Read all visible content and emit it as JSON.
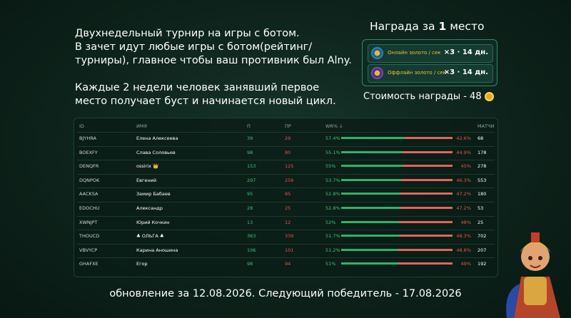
{
  "description": {
    "lines": [
      "Двухнедельный турнир на игры с ботом.",
      "В зачет идут любые игры с ботом(рейтинг/",
      "турниры), главное чтобы ваш противник был Alny.",
      "Каждые 2 недели человек занявший первое",
      "место получает буст и начинается новый цикл."
    ]
  },
  "reward": {
    "title_prefix": "Награда за",
    "place": "1",
    "title_suffix": "место",
    "items": [
      {
        "label": "Онлайн золото / сек",
        "bonus": "×3 · 14 дн."
      },
      {
        "label": "Оффлайн золото / сек",
        "bonus": "×3 · 14 дн."
      }
    ],
    "cost": "Стоимость награды - 48"
  },
  "table": {
    "headers": [
      "ID",
      "ИМЯ",
      "П",
      "ПР",
      "WR% ↓",
      "МАТЧИ"
    ],
    "rows": [
      {
        "id": "BJYHRA",
        "name": "Елена Алексеева",
        "wins": "39",
        "losses": "29",
        "win": {
          "value": 57.4,
          "label": "57.4%"
        },
        "loss": {
          "value": 42.6,
          "label": "42.6%"
        },
        "matches": "68"
      },
      {
        "id": "BOEXFY",
        "name": "Слава Соловьев",
        "wins": "98",
        "losses": "80",
        "win": {
          "value": 55.1,
          "label": "55.1%"
        },
        "loss": {
          "value": 44.9,
          "label": "44.9%"
        },
        "matches": "178"
      },
      {
        "id": "DENQFR",
        "name": "ossirix 👑",
        "wins": "153",
        "losses": "125",
        "win": {
          "value": 55,
          "label": "55%"
        },
        "loss": {
          "value": 45,
          "label": "45%"
        },
        "matches": "278"
      },
      {
        "id": "DQNPOK",
        "name": "Евгений",
        "wins": "297",
        "losses": "256",
        "win": {
          "value": 53.7,
          "label": "53.7%"
        },
        "loss": {
          "value": 46.3,
          "label": "46.3%"
        },
        "matches": "553"
      },
      {
        "id": "AACKSA",
        "name": "Замир Бабаев",
        "wins": "95",
        "losses": "85",
        "win": {
          "value": 52.8,
          "label": "52.8%"
        },
        "loss": {
          "value": 47.2,
          "label": "47.2%"
        },
        "matches": "180"
      },
      {
        "id": "EDOCHU",
        "name": "Александр",
        "wins": "28",
        "losses": "25",
        "win": {
          "value": 52.8,
          "label": "52.8%"
        },
        "loss": {
          "value": 47.2,
          "label": "47.2%"
        },
        "matches": "53"
      },
      {
        "id": "XWNJPT",
        "name": "Юрий Кочкин",
        "wins": "13",
        "losses": "12",
        "win": {
          "value": 52,
          "label": "52%"
        },
        "loss": {
          "value": 48,
          "label": "48%"
        },
        "matches": "25"
      },
      {
        "id": "THOUCD",
        "name": "♣ ОЛЬГА ♣",
        "wins": "363",
        "losses": "339",
        "win": {
          "value": 51.7,
          "label": "51.7%"
        },
        "loss": {
          "value": 48.3,
          "label": "48.3%"
        },
        "matches": "702"
      },
      {
        "id": "VBVYCP",
        "name": "Карина Аношина",
        "wins": "106",
        "losses": "101",
        "win": {
          "value": 51.2,
          "label": "51.2%"
        },
        "loss": {
          "value": 48.8,
          "label": "48.8%"
        },
        "matches": "207"
      },
      {
        "id": "GHAFXE",
        "name": "Егор",
        "wins": "98",
        "losses": "94",
        "win": {
          "value": 51,
          "label": "51%"
        },
        "loss": {
          "value": 49,
          "label": "49%"
        },
        "matches": "192"
      }
    ]
  },
  "footer": "обновление за 12.08.2026. Следующий победитель - 17.08.2026"
}
